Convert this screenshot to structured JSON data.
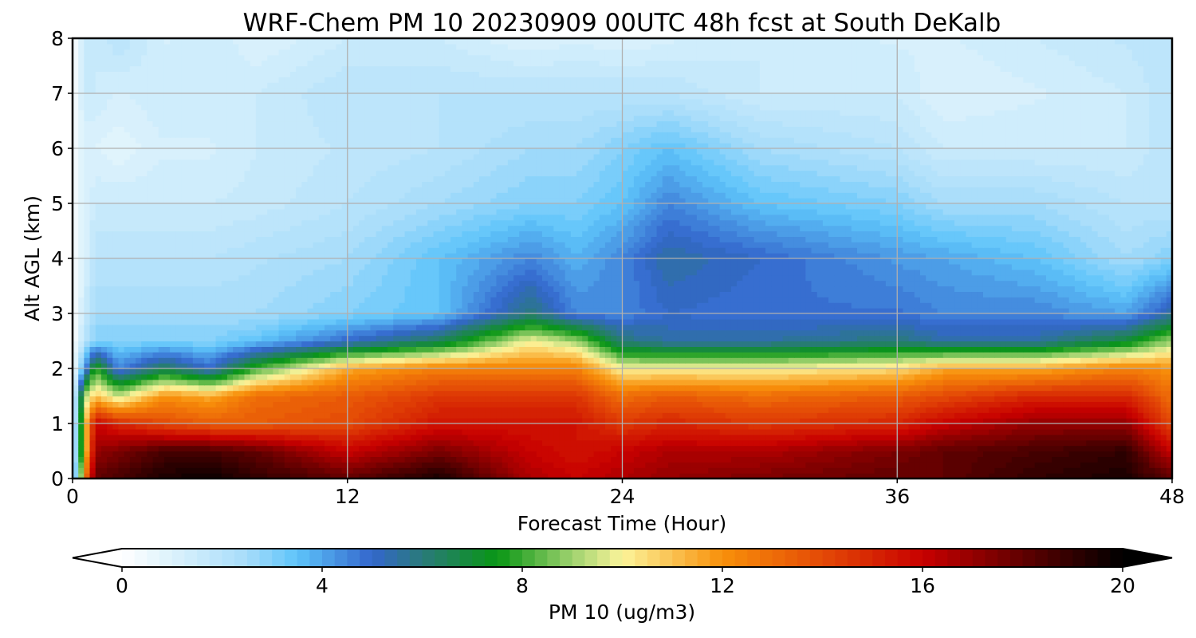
{
  "chart_data": {
    "type": "heatmap",
    "title": "WRF-Chem PM 10  20230909 00UTC 48h fcst at South DeKalb",
    "xlabel": "Forecast Time (Hour)",
    "ylabel": "Alt AGL (km)",
    "xlim": [
      0,
      48
    ],
    "ylim": [
      0,
      8
    ],
    "x_ticks": [
      "0",
      "12",
      "24",
      "36",
      "48"
    ],
    "y_ticks": [
      "0",
      "1",
      "2",
      "3",
      "4",
      "5",
      "6",
      "7",
      "8"
    ],
    "grid": true,
    "colorbar": {
      "label": "PM 10  (ug/m3)",
      "range": [
        0,
        20
      ],
      "extend": "both",
      "ticks": [
        "0",
        "4",
        "8",
        "12",
        "16",
        "20"
      ],
      "stops": [
        {
          "v": 0,
          "c": "#ffffff"
        },
        {
          "v": 1,
          "c": "#dcf2fc"
        },
        {
          "v": 2.5,
          "c": "#a6dcfa"
        },
        {
          "v": 3.5,
          "c": "#5ec4fa"
        },
        {
          "v": 5,
          "c": "#3366cc"
        },
        {
          "v": 6,
          "c": "#2a7a7a"
        },
        {
          "v": 7.5,
          "c": "#089614"
        },
        {
          "v": 9,
          "c": "#9ed26e"
        },
        {
          "v": 10,
          "c": "#fcf49a"
        },
        {
          "v": 12,
          "c": "#f8900a"
        },
        {
          "v": 14,
          "c": "#e44a06"
        },
        {
          "v": 16,
          "c": "#c80000"
        },
        {
          "v": 18,
          "c": "#600000"
        },
        {
          "v": 20,
          "c": "#000000"
        }
      ]
    },
    "field": {
      "x": [
        0,
        0.5,
        1,
        2,
        4,
        6,
        8,
        12,
        16,
        20,
        22,
        24,
        26,
        30,
        36,
        38,
        42,
        46,
        48
      ],
      "y": [
        0,
        0.5,
        1,
        1.5,
        2,
        2.5,
        3,
        4,
        5,
        6,
        7,
        8
      ],
      "z": [
        [
          0,
          12,
          18,
          18.5,
          19.5,
          19.8,
          19,
          18,
          19.5,
          16.5,
          16,
          16.5,
          17,
          17.5,
          18,
          18,
          19,
          19.5,
          18
        ],
        [
          0,
          10,
          17,
          17.5,
          18.5,
          18.5,
          18,
          16,
          17.5,
          16,
          15.5,
          16,
          16.5,
          16.5,
          17.5,
          18,
          18.5,
          19,
          16
        ],
        [
          0,
          10,
          16,
          15,
          14,
          13.5,
          13.5,
          14,
          15.5,
          15.5,
          15.5,
          14.5,
          15,
          14.5,
          15,
          16,
          17,
          17,
          14
        ],
        [
          0,
          9,
          11,
          9.5,
          12,
          11.5,
          13,
          13.5,
          14.5,
          14.5,
          14.5,
          13,
          13.5,
          13,
          13.5,
          14,
          15,
          15,
          13
        ],
        [
          0,
          4,
          8,
          4.5,
          6.5,
          5,
          8,
          11.5,
          12.5,
          12.5,
          12.5,
          10,
          10,
          10,
          10.5,
          11.5,
          11.5,
          12.5,
          12
        ],
        [
          0,
          2,
          3,
          3,
          3,
          3,
          3.5,
          5,
          6.5,
          10,
          9,
          6,
          5.5,
          5.5,
          6,
          5.5,
          5.5,
          7,
          9
        ],
        [
          0,
          1.5,
          2.5,
          2.5,
          2.5,
          2.5,
          2.5,
          3,
          3.5,
          6,
          4.5,
          4.5,
          5,
          4.8,
          4.8,
          4.5,
          4.5,
          4,
          5.5
        ],
        [
          0,
          1,
          2,
          2,
          2,
          2,
          2.2,
          2.5,
          3.5,
          4.5,
          3.8,
          4.5,
          5.5,
          5,
          4.2,
          4,
          3.5,
          2.5,
          3
        ],
        [
          0,
          1,
          1.5,
          1.5,
          1.5,
          1.5,
          1.6,
          2,
          2.5,
          3,
          3,
          3.5,
          4.5,
          3.5,
          3,
          2.5,
          2.5,
          2,
          2
        ],
        [
          0,
          1,
          1,
          0.8,
          1.2,
          1.2,
          1.5,
          1.8,
          2,
          2.5,
          2.5,
          3,
          3.5,
          2.5,
          2,
          1.5,
          1.5,
          1.5,
          2
        ],
        [
          0,
          1.5,
          1.5,
          1.2,
          1.5,
          1.5,
          1.5,
          2,
          2,
          2,
          2,
          2,
          2,
          1.5,
          1.5,
          1,
          1.2,
          1.5,
          2
        ],
        [
          0,
          1.5,
          1.5,
          2,
          1.2,
          1.5,
          1,
          1.5,
          1.5,
          1,
          1.2,
          1,
          1.2,
          1.5,
          1.2,
          1.2,
          1.5,
          1.8,
          2
        ]
      ]
    }
  }
}
